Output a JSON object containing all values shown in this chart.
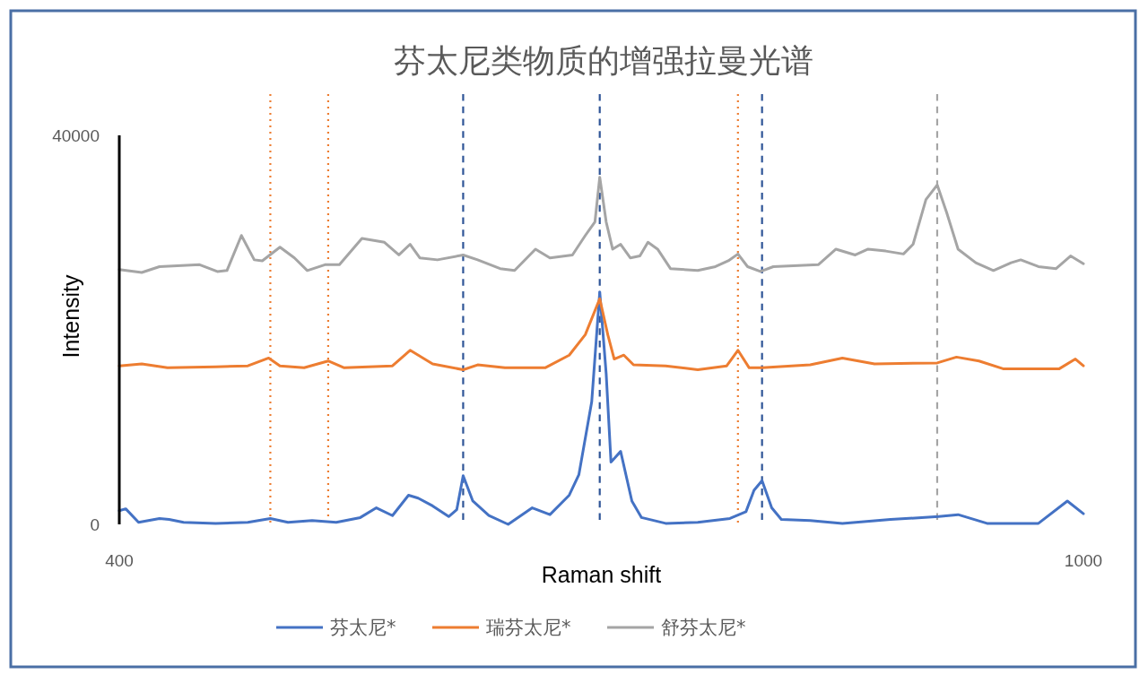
{
  "chart_data": {
    "type": "line",
    "title": "芬太尼类物质的增强拉曼光谱",
    "xlabel": "Raman shift",
    "ylabel": "Intensity",
    "xlim": [
      400,
      1000
    ],
    "xticks": [
      400,
      1000
    ],
    "ylim": [
      0,
      40000
    ],
    "yticks": [
      0,
      40000
    ],
    "grid": false,
    "legend": "bottom",
    "marker": "none",
    "line_style": "solid",
    "series": [
      {
        "name": "芬太尼*",
        "color": "#4472c4",
        "x": [
          400,
          404,
          412,
          425,
          431,
          440,
          460,
          480,
          494,
          505,
          520,
          535,
          550,
          560,
          570,
          580,
          586,
          595,
          605,
          610,
          614,
          620,
          630,
          642,
          657,
          668,
          680,
          686,
          694,
          699,
          703,
          706,
          712,
          719,
          725,
          740,
          760,
          780,
          790,
          795,
          800,
          806,
          812,
          830,
          850,
          880,
          910,
          922,
          940,
          972,
          990,
          1000
        ],
        "values": [
          1400,
          1600,
          200,
          600,
          500,
          200,
          100,
          200,
          600,
          200,
          400,
          200,
          700,
          1700,
          900,
          3000,
          2700,
          1900,
          800,
          1500,
          5000,
          2400,
          900,
          0,
          1700,
          1000,
          3000,
          5100,
          12600,
          23900,
          15500,
          6400,
          7500,
          2400,
          700,
          100,
          200,
          600,
          1300,
          3500,
          4500,
          1700,
          500,
          400,
          100,
          500,
          800,
          1000,
          100,
          100,
          2400,
          1100
        ]
      },
      {
        "name": "瑞芬太尼*",
        "color": "#ed7d31",
        "x": [
          400,
          414,
          430,
          460,
          480,
          493,
          500,
          515,
          530,
          540,
          570,
          581,
          595,
          614,
          623,
          640,
          665,
          680,
          690,
          699,
          704,
          708,
          714,
          720,
          740,
          760,
          778,
          785,
          792,
          800,
          830,
          850,
          870,
          909,
          921,
          935,
          950,
          985,
          995,
          1000
        ],
        "values": [
          16300,
          16500,
          16100,
          16200,
          16300,
          17100,
          16300,
          16100,
          16800,
          16100,
          16300,
          17900,
          16500,
          15900,
          16400,
          16100,
          16100,
          17400,
          19500,
          23200,
          19500,
          17000,
          17400,
          16400,
          16300,
          15900,
          16300,
          17900,
          16100,
          16100,
          16400,
          17100,
          16500,
          16600,
          17200,
          16800,
          16000,
          16000,
          17000,
          16300
        ]
      },
      {
        "name": "舒芬太尼*",
        "color": "#a5a5a5",
        "x": [
          400,
          414,
          425,
          450,
          461,
          467,
          476,
          484,
          489,
          500,
          509,
          517,
          528,
          537,
          551,
          565,
          574,
          581,
          587,
          598,
          614,
          623,
          637,
          646,
          659,
          668,
          682,
          690,
          696,
          699,
          703,
          707,
          712,
          718,
          724,
          729,
          735,
          743,
          760,
          771,
          779,
          785,
          791,
          799,
          807,
          835,
          846,
          858,
          866,
          877,
          888,
          894,
          902,
          909,
          915,
          922,
          933,
          944,
          955,
          961,
          972,
          983,
          992,
          1000
        ],
        "values": [
          26200,
          25900,
          26500,
          26700,
          26000,
          26100,
          29700,
          27200,
          27100,
          28500,
          27400,
          26100,
          26700,
          26700,
          29400,
          29000,
          27700,
          28800,
          27400,
          27200,
          27700,
          27200,
          26300,
          26100,
          28300,
          27400,
          27700,
          29700,
          31100,
          35700,
          31100,
          28300,
          28800,
          27400,
          27600,
          29000,
          28300,
          26300,
          26100,
          26500,
          27100,
          27800,
          26500,
          26000,
          26500,
          26700,
          28300,
          27700,
          28300,
          28100,
          27800,
          28800,
          33400,
          34900,
          32000,
          28300,
          26900,
          26100,
          26900,
          27200,
          26500,
          26300,
          27600,
          26800
        ]
      }
    ],
    "ref_lines": [
      {
        "axis": "x",
        "value": 494,
        "color": "#ed7d31",
        "line_style": "dotted"
      },
      {
        "axis": "x",
        "value": 530,
        "color": "#ed7d31",
        "line_style": "dotted"
      },
      {
        "axis": "x",
        "value": 785,
        "color": "#ed7d31",
        "line_style": "dotted"
      },
      {
        "axis": "x",
        "value": 614,
        "color": "#2f5597",
        "line_style": "dashed"
      },
      {
        "axis": "x",
        "value": 699,
        "color": "#2f5597",
        "line_style": "dashed"
      },
      {
        "axis": "x",
        "value": 800,
        "color": "#2f5597",
        "line_style": "dashed"
      },
      {
        "axis": "x",
        "value": 909,
        "color": "#a5a5a5",
        "line_style": "dashed"
      }
    ]
  }
}
